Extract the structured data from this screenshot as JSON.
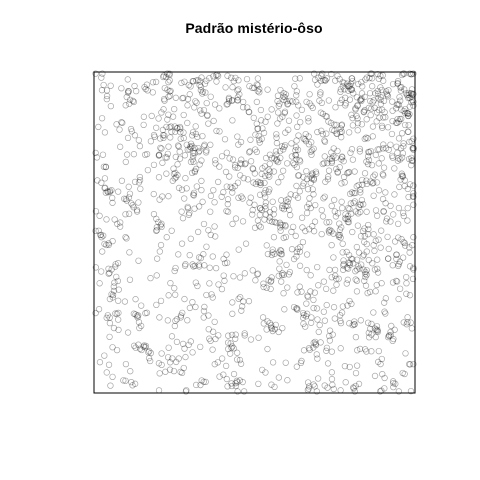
{
  "chart_data": {
    "type": "scatter",
    "title": "Padrão mistério-ôso",
    "xlabel": "",
    "ylabel": "",
    "xlim": [
      0,
      1
    ],
    "ylim": [
      0,
      1
    ],
    "axes": "box only, no ticks or tick labels",
    "grid": false,
    "marker": "open circle",
    "marker_color": "#000000",
    "marker_opacity": 0.35,
    "n_points": 1600,
    "density": "clustered; densest toward the top-right corner, sparser in the lower-left and middle-left"
  }
}
